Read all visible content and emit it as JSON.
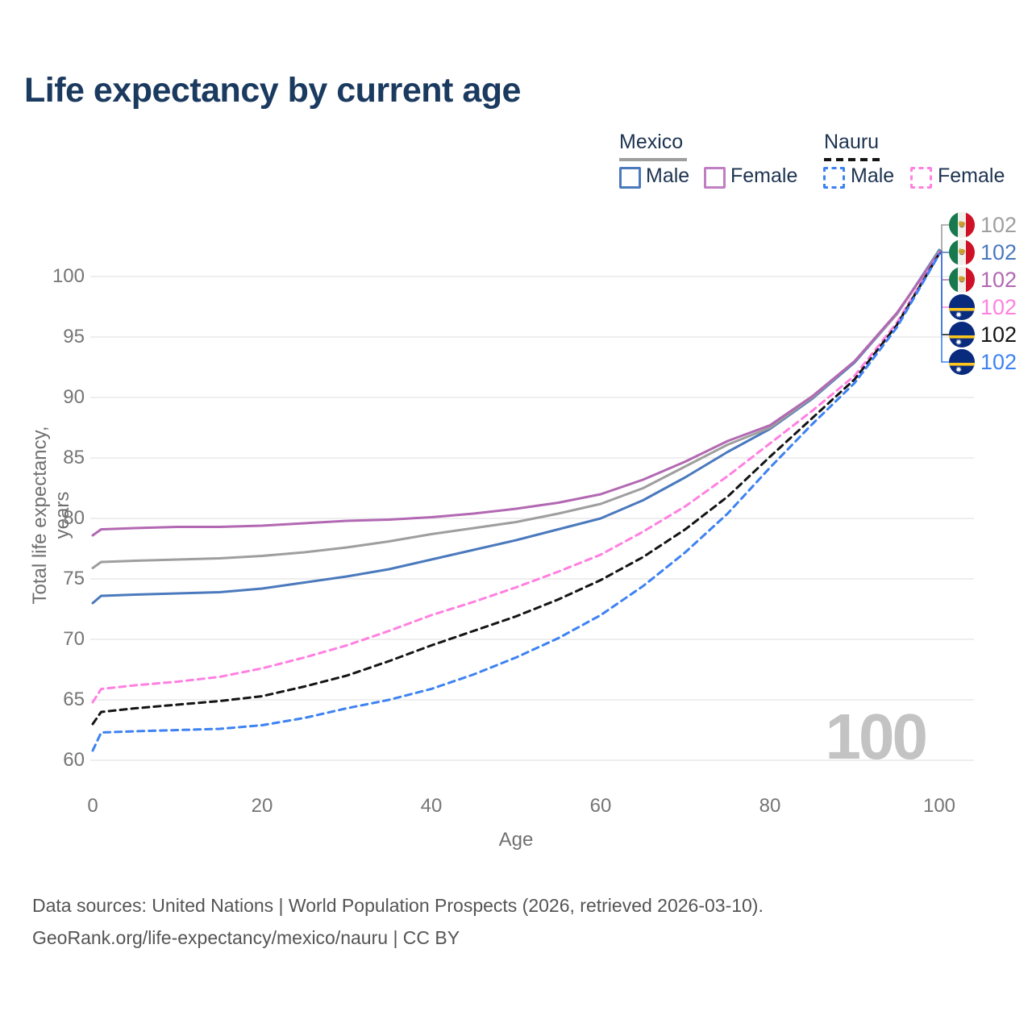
{
  "title": "Life expectancy by current age",
  "legend": {
    "mexico": {
      "label": "Mexico",
      "male_label": "Male",
      "female_label": "Female"
    },
    "nauru": {
      "label": "Nauru",
      "male_label": "Male",
      "female_label": "Female"
    }
  },
  "axes": {
    "x": {
      "label": "Age",
      "ticks": [
        0,
        20,
        40,
        60,
        80,
        100
      ]
    },
    "y": {
      "label": "Total life expectancy, years",
      "ticks": [
        60,
        65,
        70,
        75,
        80,
        85,
        90,
        95,
        100
      ]
    }
  },
  "watermark": "100",
  "end_labels": [
    {
      "flag": "mexico",
      "value": "102",
      "color": "#9e9e9e"
    },
    {
      "flag": "mexico",
      "value": "102",
      "color": "#4a79bd"
    },
    {
      "flag": "mexico",
      "value": "102",
      "color": "#b268b2"
    },
    {
      "flag": "nauru",
      "value": "102",
      "color": "#ff80e1"
    },
    {
      "flag": "nauru",
      "value": "102",
      "color": "#141414"
    },
    {
      "flag": "nauru",
      "value": "102",
      "color": "#3d82f2"
    }
  ],
  "footer": {
    "line1": "Data sources: United Nations | World Population Prospects (2026, retrieved 2026-03-10).",
    "line2": "GeoRank.org/life-expectancy/mexico/nauru | CC BY"
  },
  "colors": {
    "grid": "#e9e9e9",
    "title_text": "#1b3a5f",
    "axis_text": "#757575",
    "watermark_text": "#c3c3c3"
  },
  "chart_data": {
    "type": "line",
    "title": "Life expectancy by current age",
    "xlabel": "Age",
    "ylabel": "Total life expectancy, years",
    "x_range": [
      0,
      100
    ],
    "y_range": [
      60,
      102.5
    ],
    "grid": true,
    "ages": [
      0,
      1,
      5,
      10,
      15,
      20,
      25,
      30,
      35,
      40,
      45,
      50,
      55,
      60,
      65,
      70,
      75,
      80,
      85,
      90,
      95,
      100
    ],
    "series": [
      {
        "name": "Mexico Male",
        "country": "Mexico",
        "sex": "Male",
        "style": "solid",
        "color": "#4a79bd",
        "values": [
          73.0,
          73.6,
          73.7,
          73.8,
          73.9,
          74.2,
          74.7,
          75.2,
          75.8,
          76.6,
          77.4,
          78.2,
          79.1,
          80.0,
          81.5,
          83.4,
          85.5,
          87.4,
          89.9,
          92.9,
          96.9,
          102.2
        ]
      },
      {
        "name": "Mexico Both sexes",
        "country": "Mexico",
        "sex": "Both",
        "style": "solid",
        "color": "#9e9e9e",
        "values": [
          75.9,
          76.4,
          76.5,
          76.6,
          76.7,
          76.9,
          77.2,
          77.6,
          78.1,
          78.7,
          79.2,
          79.7,
          80.4,
          81.2,
          82.5,
          84.3,
          86.1,
          87.5,
          90.0,
          93.0,
          96.9,
          102.1
        ]
      },
      {
        "name": "Mexico Female",
        "country": "Mexico",
        "sex": "Female",
        "style": "solid",
        "color": "#b268b2",
        "values": [
          78.6,
          79.1,
          79.2,
          79.3,
          79.3,
          79.4,
          79.6,
          79.8,
          79.9,
          80.1,
          80.4,
          80.8,
          81.3,
          82.0,
          83.2,
          84.7,
          86.4,
          87.7,
          90.1,
          93.0,
          97.0,
          102.0
        ]
      },
      {
        "name": "Nauru Female",
        "country": "Nauru",
        "sex": "Female",
        "style": "dashed",
        "color": "#ff80e1",
        "values": [
          64.8,
          65.9,
          66.2,
          66.5,
          66.9,
          67.6,
          68.5,
          69.5,
          70.7,
          72.0,
          73.1,
          74.3,
          75.6,
          77.0,
          78.9,
          81.0,
          83.5,
          86.2,
          88.9,
          91.8,
          96.2,
          101.95
        ]
      },
      {
        "name": "Nauru Both sexes",
        "country": "Nauru",
        "sex": "Both",
        "style": "dashed",
        "color": "#141414",
        "values": [
          63.0,
          64.0,
          64.3,
          64.6,
          64.9,
          65.3,
          66.1,
          67.0,
          68.2,
          69.5,
          70.7,
          71.9,
          73.3,
          74.9,
          76.8,
          79.1,
          81.8,
          85.1,
          88.3,
          91.5,
          96.0,
          101.9
        ]
      },
      {
        "name": "Nauru Male",
        "country": "Nauru",
        "sex": "Male",
        "style": "dashed",
        "color": "#3d82f2",
        "values": [
          60.8,
          62.3,
          62.4,
          62.5,
          62.6,
          62.9,
          63.5,
          64.3,
          65.0,
          65.9,
          67.1,
          68.5,
          70.1,
          72.0,
          74.4,
          77.2,
          80.4,
          84.2,
          87.8,
          91.2,
          95.8,
          101.85
        ]
      }
    ]
  }
}
